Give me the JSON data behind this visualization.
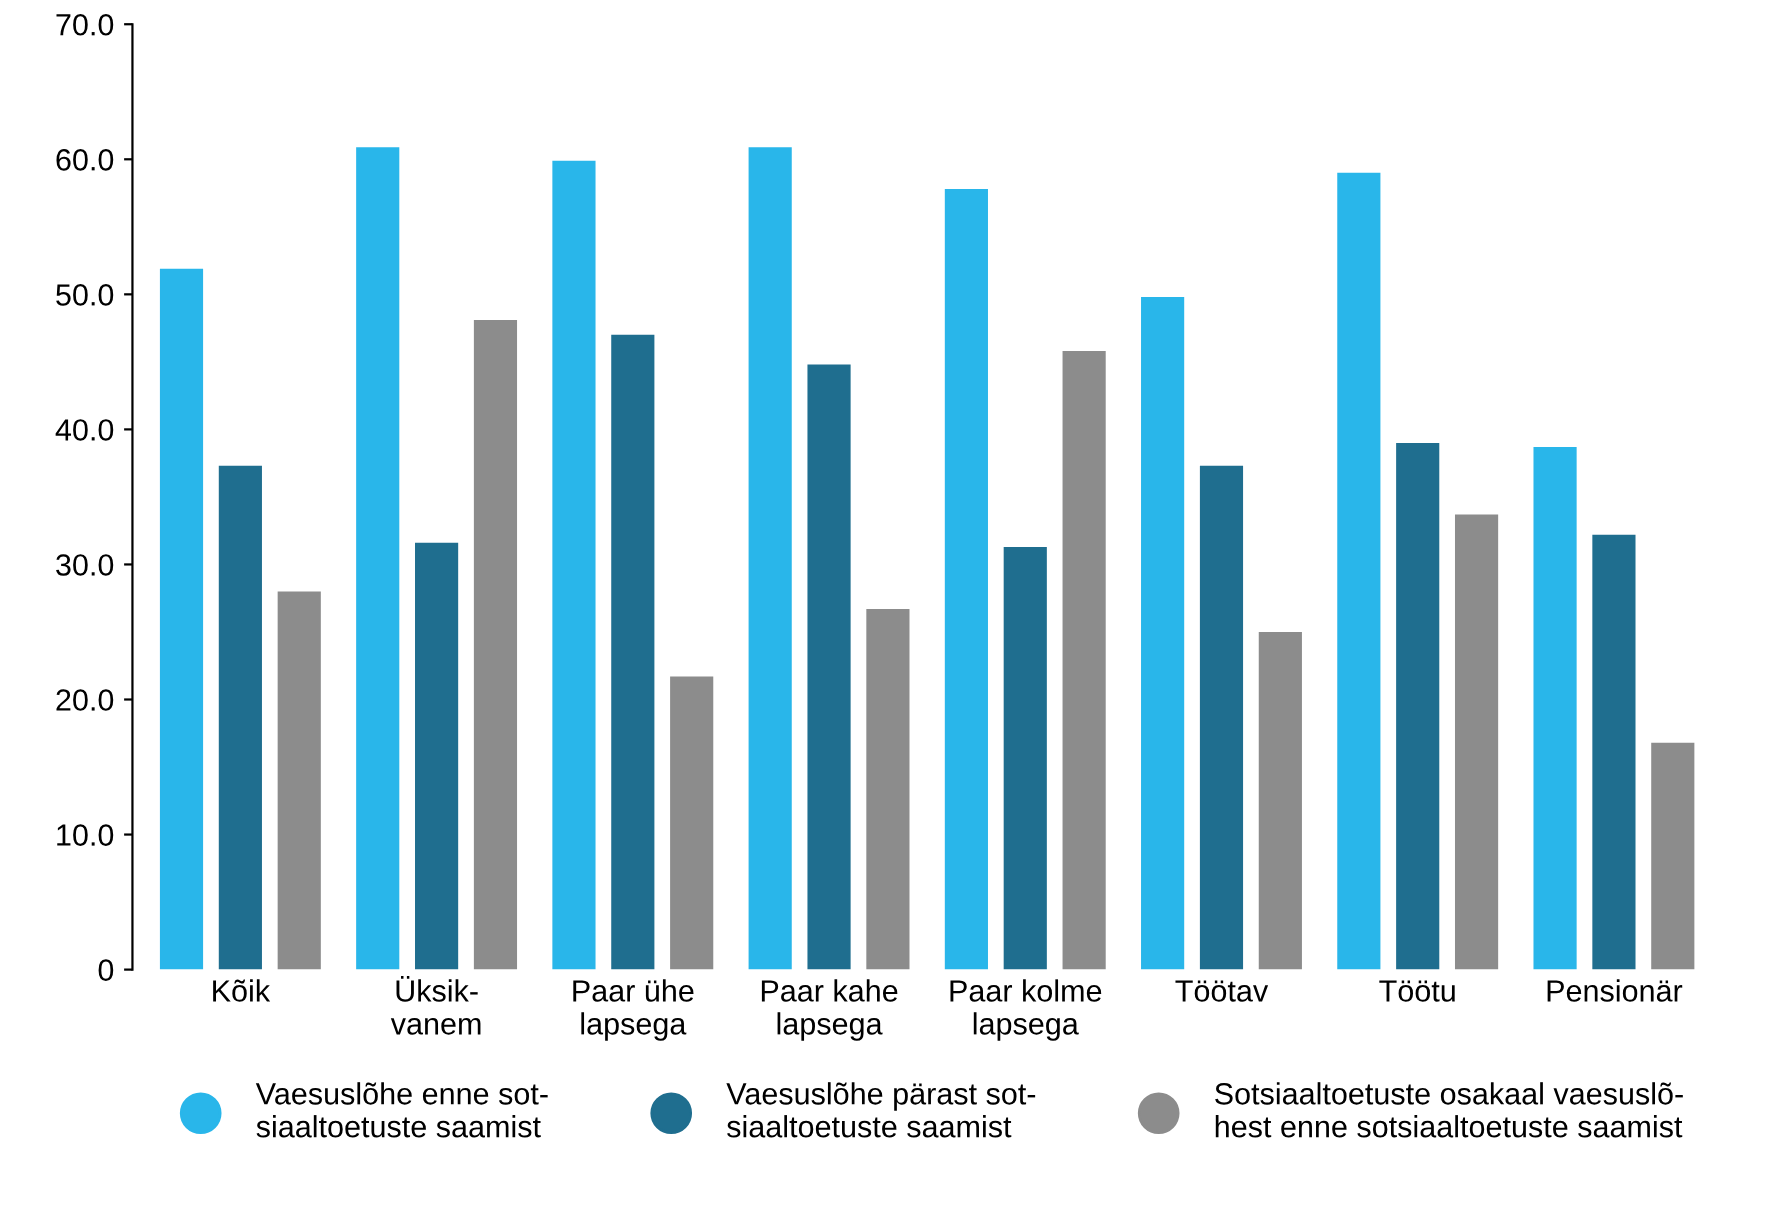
{
  "chart_data": {
    "type": "bar",
    "categories": [
      "Kõik",
      "Üksik-\nvanem",
      "Paar ühe\nlapsega",
      "Paar kahe\nlapsega",
      "Paar kolme\nlapsega",
      "Töötav",
      "Töötu",
      "Pensionär"
    ],
    "series": [
      {
        "name": "Vaesuslõhe enne sot-\nsiaaltoetuste saamist",
        "color": "#29b6ea",
        "values": [
          51.9,
          60.9,
          59.9,
          60.9,
          57.8,
          49.8,
          59.0,
          38.7
        ]
      },
      {
        "name": "Vaesuslõhe pärast sot-\nsiaaltoetuste saamist",
        "color": "#1f6e8f",
        "values": [
          37.3,
          31.6,
          47.0,
          44.8,
          31.3,
          37.3,
          39.0,
          32.2
        ]
      },
      {
        "name": "Sotsiaaltoetuste osakaal vaesuslõ-\nhest enne sotsiaaltoetuste saamist",
        "color": "#8c8c8c",
        "values": [
          28.0,
          48.1,
          21.7,
          26.7,
          45.8,
          25.0,
          33.7,
          16.8
        ]
      }
    ],
    "ylim": [
      0,
      70
    ],
    "yticks": [
      0,
      {
        "value": 10,
        "label": "10.0"
      },
      {
        "value": 20,
        "label": "20.0"
      },
      {
        "value": 30,
        "label": "30.0"
      },
      {
        "value": 40,
        "label": "40.0"
      },
      {
        "value": 50,
        "label": "50.0"
      },
      {
        "value": 60,
        "label": "60.0"
      },
      {
        "value": 70,
        "label": "70.0"
      }
    ],
    "grid": false,
    "legend": "bottom",
    "marker": "circle"
  }
}
